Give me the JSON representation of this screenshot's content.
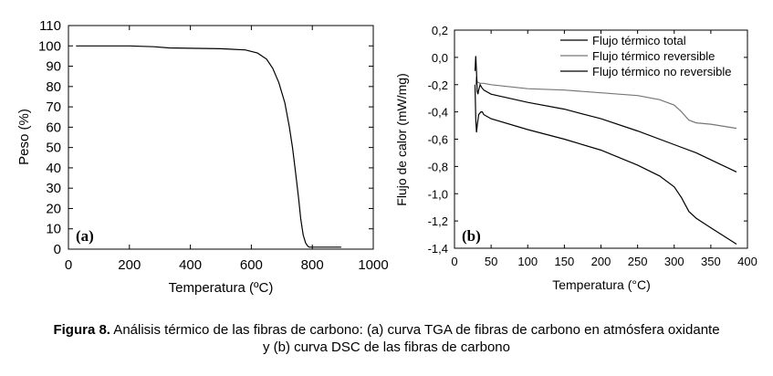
{
  "chart_data": [
    {
      "type": "line",
      "panel_label": "(a)",
      "xlabel": "Temperatura (ºC)",
      "ylabel": "Peso (%)",
      "xlim": [
        0,
        1000
      ],
      "ylim": [
        0,
        110
      ],
      "xticks": [
        0,
        200,
        400,
        600,
        800,
        1000
      ],
      "yticks": [
        0,
        10,
        20,
        30,
        40,
        50,
        60,
        70,
        80,
        90,
        100,
        110
      ],
      "x_tick_labels": [
        "0",
        "200",
        "400",
        "600",
        "800",
        "1000"
      ],
      "y_tick_labels": [
        "0",
        "10",
        "20",
        "30",
        "40",
        "50",
        "60",
        "70",
        "80",
        "90",
        "100",
        "110"
      ],
      "grid": false,
      "series": [
        {
          "color": "#000000",
          "x": [
            25,
            100,
            200,
            280,
            330,
            400,
            500,
            580,
            620,
            650,
            670,
            690,
            710,
            725,
            735,
            745,
            755,
            762,
            770,
            778,
            785,
            790,
            795,
            800,
            850,
            895
          ],
          "y": [
            100,
            100,
            100,
            99.6,
            99,
            98.8,
            98.6,
            98,
            96.5,
            93.5,
            89,
            82,
            72,
            60,
            50,
            38,
            25,
            15,
            7,
            3,
            1.5,
            1,
            1,
            1,
            1,
            1
          ]
        }
      ]
    },
    {
      "type": "line",
      "panel_label": "(b)",
      "xlabel": "Temperatura (°C)",
      "ylabel": "Flujo de calor (mW/mg)",
      "xlim": [
        0,
        400
      ],
      "ylim": [
        -1.4,
        0.2
      ],
      "xticks": [
        0,
        50,
        100,
        150,
        200,
        250,
        300,
        350,
        400
      ],
      "yticks": [
        -1.4,
        -1.2,
        -1.0,
        -0.8,
        -0.6,
        -0.4,
        -0.2,
        0.0,
        0.2
      ],
      "x_tick_labels": [
        "0",
        "50",
        "100",
        "150",
        "200",
        "250",
        "300",
        "350",
        "400"
      ],
      "y_tick_labels": [
        "-1,4",
        "-1,2",
        "-1,0",
        "-0,8",
        "-0,6",
        "-0,4",
        "-0,2",
        "0,0",
        "0,2"
      ],
      "grid": false,
      "legend_position": "top-right",
      "series": [
        {
          "name": "Flujo térmico total",
          "color": "#000000",
          "x": [
            28,
            29,
            30,
            31,
            33,
            36,
            38,
            40,
            50,
            100,
            150,
            200,
            250,
            280,
            300,
            310,
            320,
            330,
            350,
            385
          ],
          "y": [
            -0.2,
            -0.45,
            -0.55,
            -0.5,
            -0.42,
            -0.4,
            -0.4,
            -0.42,
            -0.45,
            -0.53,
            -0.6,
            -0.68,
            -0.79,
            -0.87,
            -0.95,
            -1.03,
            -1.13,
            -1.18,
            -1.25,
            -1.37
          ]
        },
        {
          "name": "Flujo térmico reversible",
          "color": "#777777",
          "x": [
            29,
            30,
            31,
            35,
            40,
            50,
            100,
            150,
            200,
            250,
            280,
            300,
            310,
            320,
            330,
            350,
            385
          ],
          "y": [
            -0.2,
            -0.14,
            -0.18,
            -0.19,
            -0.19,
            -0.2,
            -0.23,
            -0.24,
            -0.26,
            -0.28,
            -0.31,
            -0.35,
            -0.4,
            -0.46,
            -0.48,
            -0.49,
            -0.52
          ]
        },
        {
          "name": "Flujo térmico no reversible",
          "color": "#000000",
          "x": [
            28,
            29,
            30,
            31,
            32,
            33,
            35,
            37,
            40,
            50,
            100,
            150,
            200,
            250,
            300,
            330,
            385
          ],
          "y": [
            -0.1,
            0.01,
            -0.1,
            -0.25,
            -0.27,
            -0.24,
            -0.2,
            -0.22,
            -0.24,
            -0.27,
            -0.33,
            -0.38,
            -0.45,
            -0.54,
            -0.64,
            -0.7,
            -0.84
          ]
        }
      ]
    }
  ],
  "caption": {
    "label": "Figura 8.",
    "line1": " Análisis térmico de las fibras de carbono: (a) curva TGA de fibras de carbono en atmósfera oxidante",
    "line2": "y (b) curva DSC de las fibras de carbono"
  }
}
